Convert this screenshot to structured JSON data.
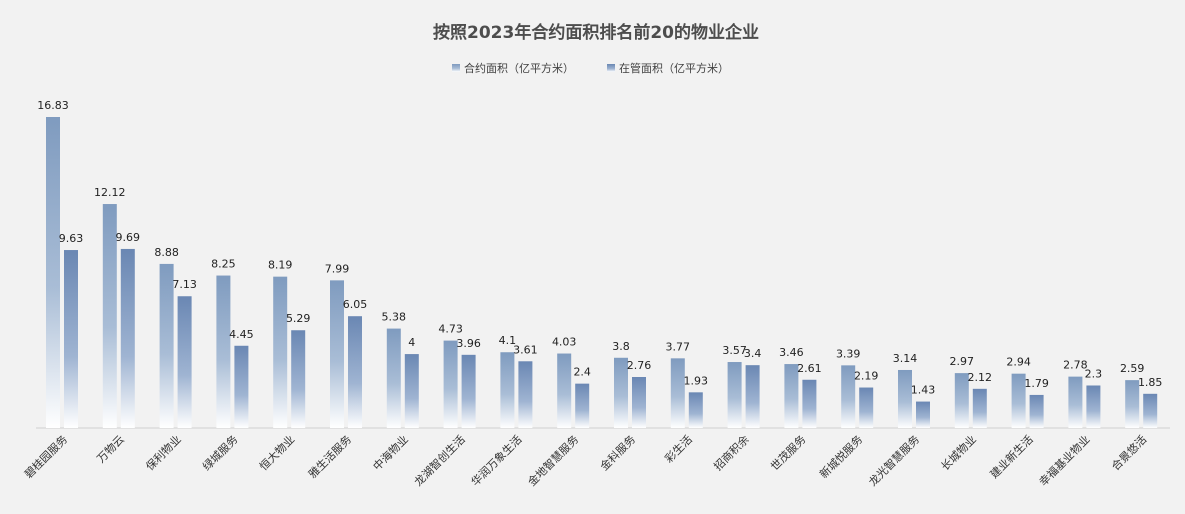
{
  "chart_data": {
    "type": "bar",
    "title": "按照2023年合约面积排名前20的物业企业",
    "xlabel": "",
    "ylabel": "",
    "ylim": [
      0,
      18
    ],
    "grid": false,
    "legend_position": "top-center",
    "categories": [
      "碧桂园服务",
      "万物云",
      "保利物业",
      "绿城服务",
      "恒大物业",
      "雅生活服务",
      "中海物业",
      "龙湖智创生活",
      "华润万象生活",
      "金地智慧服务",
      "金科服务",
      "彩生活",
      "招商积余",
      "世茂服务",
      "新城悦服务",
      "龙光智慧服务",
      "长城物业",
      "建业新生活",
      "幸福基业物业",
      "合景悠活"
    ],
    "series": [
      {
        "name": "合约面积（亿平方米）",
        "color": "#7f9bbf",
        "values": [
          16.83,
          12.12,
          8.88,
          8.25,
          8.19,
          7.99,
          5.38,
          4.73,
          4.1,
          4.03,
          3.8,
          3.77,
          3.57,
          3.46,
          3.39,
          3.14,
          2.97,
          2.94,
          2.78,
          2.59
        ]
      },
      {
        "name": "在管面积（亿平方米）",
        "color": "#6a87b3",
        "values": [
          9.63,
          9.69,
          7.13,
          4.45,
          5.29,
          6.05,
          4,
          3.96,
          3.61,
          2.4,
          2.76,
          1.93,
          3.4,
          2.61,
          2.19,
          1.43,
          2.12,
          1.79,
          2.3,
          1.85
        ]
      }
    ]
  }
}
